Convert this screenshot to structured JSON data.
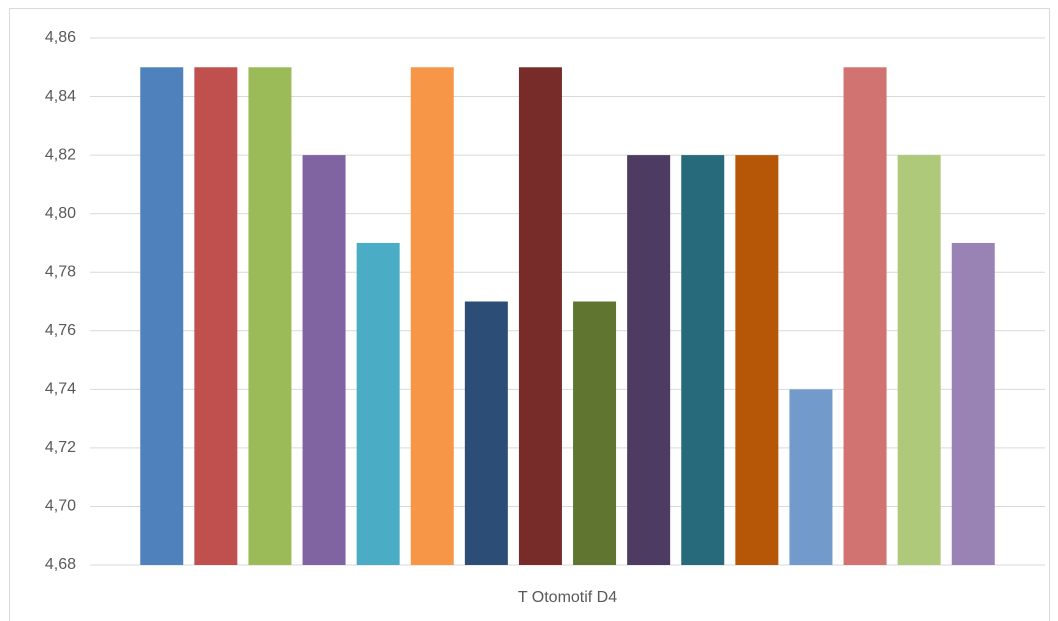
{
  "chart_data": {
    "type": "bar",
    "categories": [
      "T Otomotif D4"
    ],
    "series": [
      {
        "color": "#4f81bd",
        "values": [
          4.85
        ]
      },
      {
        "color": "#c0504d",
        "values": [
          4.85
        ]
      },
      {
        "color": "#9bbb59",
        "values": [
          4.85
        ]
      },
      {
        "color": "#8064a2",
        "values": [
          4.82
        ]
      },
      {
        "color": "#4bacc6",
        "values": [
          4.79
        ]
      },
      {
        "color": "#f79646",
        "values": [
          4.85
        ]
      },
      {
        "color": "#2c4d75",
        "values": [
          4.77
        ]
      },
      {
        "color": "#772c2a",
        "values": [
          4.85
        ]
      },
      {
        "color": "#5f7530",
        "values": [
          4.77
        ]
      },
      {
        "color": "#4d3b62",
        "values": [
          4.82
        ]
      },
      {
        "color": "#276a7c",
        "values": [
          4.82
        ]
      },
      {
        "color": "#b65708",
        "values": [
          4.82
        ]
      },
      {
        "color": "#729aca",
        "values": [
          4.74
        ]
      },
      {
        "color": "#d07371",
        "values": [
          4.85
        ]
      },
      {
        "color": "#afc97a",
        "values": [
          4.82
        ]
      },
      {
        "color": "#9983b5",
        "values": [
          4.79
        ]
      }
    ],
    "ylim": [
      4.68,
      4.86
    ],
    "yticks": [
      {
        "value": 4.68,
        "label": "4,68"
      },
      {
        "value": 4.7,
        "label": "4,70"
      },
      {
        "value": 4.72,
        "label": "4,72"
      },
      {
        "value": 4.74,
        "label": "4,74"
      },
      {
        "value": 4.76,
        "label": "4,76"
      },
      {
        "value": 4.78,
        "label": "4,78"
      },
      {
        "value": 4.8,
        "label": "4,80"
      },
      {
        "value": 4.82,
        "label": "4,82"
      },
      {
        "value": 4.84,
        "label": "4,84"
      },
      {
        "value": 4.86,
        "label": "4,86"
      }
    ],
    "grid": true
  }
}
